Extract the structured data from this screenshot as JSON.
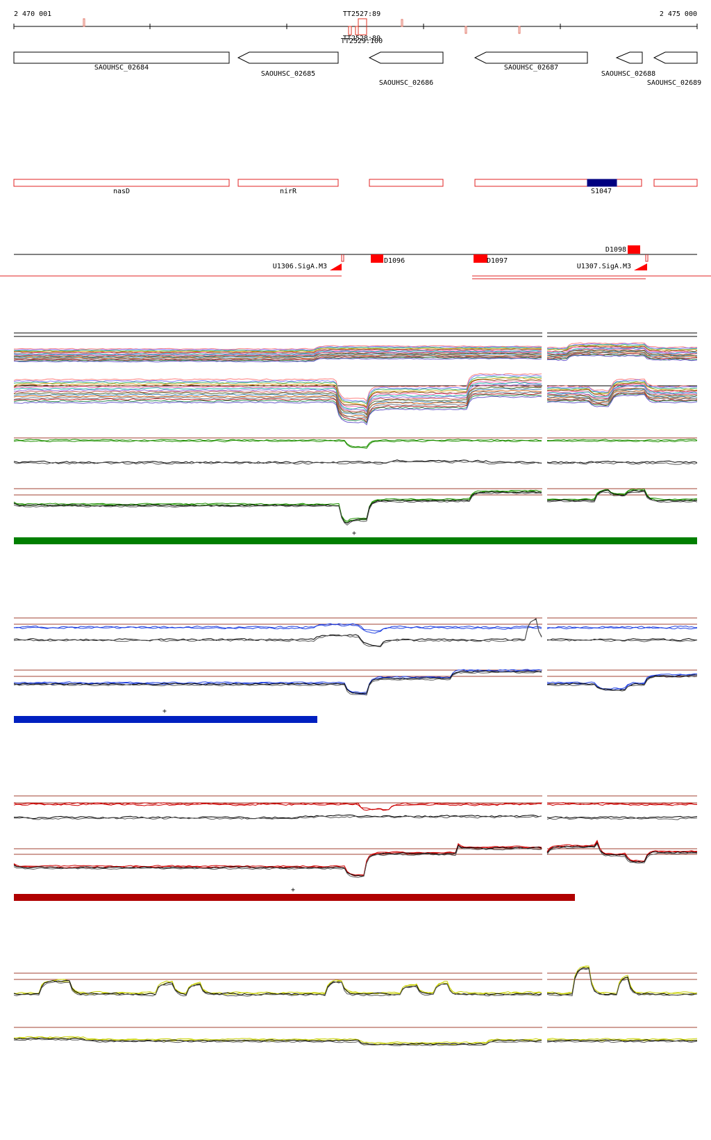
{
  "ruler": {
    "start_label": "2 470 001",
    "end_label": "2 475 000",
    "terminators": [
      "TT2527:89",
      "TT2528:89",
      "TT2529:100"
    ]
  },
  "genes": [
    {
      "name": "SAOUHSC_02684"
    },
    {
      "name": "SAOUHSC_02685"
    },
    {
      "name": "SAOUHSC_02686"
    },
    {
      "name": "SAOUHSC_02687"
    },
    {
      "name": "SAOUHSC_02688"
    },
    {
      "name": "SAOUHSC_02689"
    }
  ],
  "annotations": [
    {
      "name": "nasD"
    },
    {
      "name": "nirR"
    },
    {
      "name": ""
    },
    {
      "name": ""
    },
    {
      "name": ""
    }
  ],
  "highlight": {
    "name": "S1047",
    "color": "#000080"
  },
  "features": {
    "promoters": [
      "U1306.SigA.M3",
      "U1307.SigA.M3"
    ],
    "blocks": [
      "D1096",
      "D1097",
      "D1098"
    ]
  },
  "expression_panels": [
    {
      "id": "green",
      "color": "#007f00",
      "marker": "+"
    },
    {
      "id": "blue",
      "color": "#0020c0",
      "marker": "+"
    },
    {
      "id": "red",
      "color": "#b00000",
      "marker": "+"
    },
    {
      "id": "yellow",
      "color": "#c8d000"
    }
  ]
}
